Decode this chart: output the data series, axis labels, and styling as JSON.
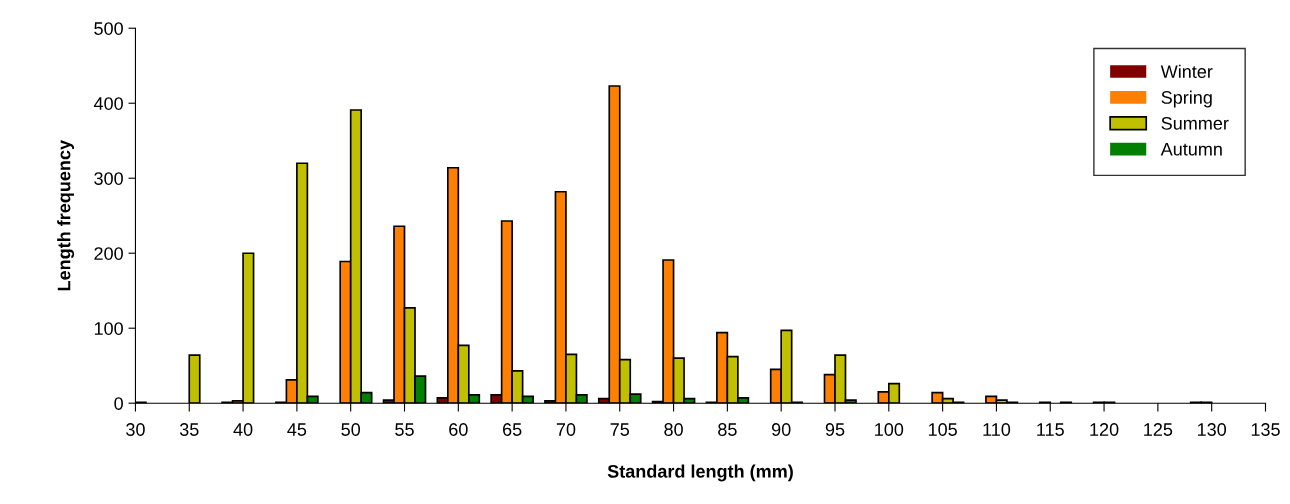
{
  "chart_data": {
    "type": "bar",
    "xlabel": "Standard length (mm)",
    "ylabel": "Length frequency",
    "categories": [
      "30",
      "35",
      "40",
      "45",
      "50",
      "55",
      "60",
      "65",
      "70",
      "75",
      "80",
      "85",
      "90",
      "95",
      "100",
      "105",
      "110",
      "115",
      "120",
      "125",
      "130",
      "135"
    ],
    "series": [
      {
        "name": "Winter",
        "color": "#800000",
        "values": [
          0,
          0,
          1,
          1,
          0,
          4,
          7,
          11,
          3,
          6,
          2,
          1,
          0,
          0,
          0,
          0,
          0,
          0,
          0,
          0,
          1,
          0
        ]
      },
      {
        "name": "Spring",
        "color": "#ff8000",
        "values": [
          0,
          0,
          3,
          31,
          189,
          236,
          314,
          243,
          282,
          423,
          191,
          94,
          45,
          38,
          15,
          14,
          9,
          1,
          1,
          0,
          1,
          0
        ]
      },
      {
        "name": "Summer",
        "color": "#c0c000",
        "values": [
          1,
          64,
          200,
          320,
          391,
          127,
          77,
          43,
          65,
          58,
          60,
          62,
          97,
          64,
          26,
          6,
          4,
          0,
          1,
          0,
          0,
          0
        ]
      },
      {
        "name": "Autumn",
        "color": "#008000",
        "values": [
          0,
          0,
          0,
          9,
          14,
          36,
          11,
          9,
          11,
          12,
          6,
          7,
          1,
          4,
          0,
          1,
          1,
          1,
          0,
          0,
          0,
          0
        ]
      }
    ],
    "ylim": [
      0,
      500
    ],
    "yticks": [
      0,
      100,
      200,
      300,
      400,
      500
    ],
    "legend": "top right"
  }
}
